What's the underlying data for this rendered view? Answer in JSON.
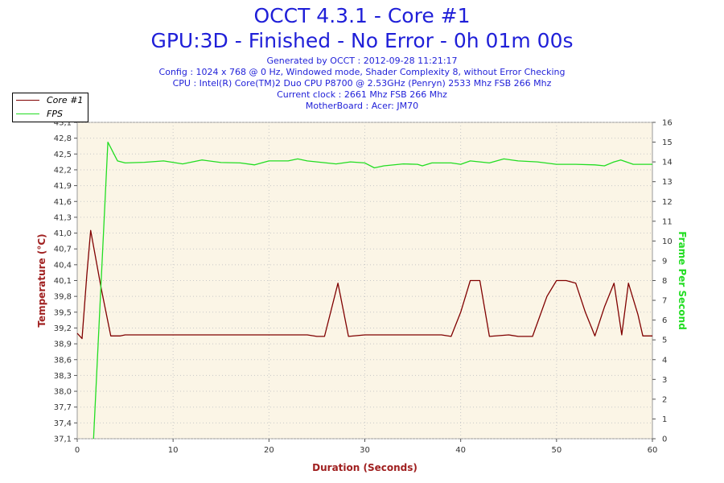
{
  "header": {
    "title": "OCCT 4.3.1 - Core #1",
    "subtitle": "GPU:3D - Finished - No Error - 0h 01m 00s",
    "info_lines": [
      "Generated by OCCT : 2012-09-28 11:21:17",
      "Config : 1024 x 768 @ 0 Hz, Windowed mode, Shader Complexity 8, without Error Checking",
      "CPU : Intel(R) Core(TM)2 Duo CPU P8700 @ 2.53GHz (Penryn) 2533 Mhz FSB 266 Mhz",
      "Current clock : 2661 Mhz FSB 266 Mhz",
      "MotherBoard : Acer: JM70"
    ]
  },
  "legend": {
    "position": "top-left",
    "items": [
      {
        "label": "Core #1",
        "color": "#800000"
      },
      {
        "label": "FPS",
        "color": "#22dd22"
      }
    ]
  },
  "colors": {
    "title": "#1f1fd8",
    "plot_background": "#fbf5e6",
    "grid": "#c8c8c8",
    "temperature_axis": "#a02020",
    "fps_axis": "#22dd22"
  },
  "chart_data": {
    "type": "line",
    "title": "OCCT 4.3.1 - Core #1",
    "subtitle": "GPU:3D - Finished - No Error - 0h 01m 00s",
    "xlabel": "Duration (Seconds)",
    "ylabel": "Temperature (°C)",
    "y2label": "Frame Per Second",
    "xlim": [
      0,
      60
    ],
    "ylim": [
      37.1,
      43.1
    ],
    "y2lim": [
      0,
      16
    ],
    "grid": true,
    "x_ticks": [
      "0",
      "10",
      "20",
      "30",
      "40",
      "50",
      "60"
    ],
    "y_ticks": [
      "37,1",
      "37,4",
      "37,7",
      "38,0",
      "38,3",
      "38,6",
      "38,9",
      "39,2",
      "39,5",
      "39,8",
      "40,1",
      "40,4",
      "40,7",
      "41,0",
      "41,3",
      "41,6",
      "41,9",
      "42,2",
      "42,5",
      "42,8",
      "43,1"
    ],
    "y2_ticks": [
      "0",
      "1",
      "2",
      "3",
      "4",
      "5",
      "6",
      "7",
      "8",
      "9",
      "10",
      "11",
      "12",
      "13",
      "14",
      "15",
      "16"
    ],
    "series": [
      {
        "name": "Core #1",
        "axis": "left",
        "color": "#800000",
        "points": [
          [
            0,
            39.1
          ],
          [
            0.5,
            39.0
          ],
          [
            1,
            40.2
          ],
          [
            1.4,
            41.05
          ],
          [
            2.5,
            39.95
          ],
          [
            3.5,
            39.05
          ],
          [
            4.5,
            39.05
          ],
          [
            5,
            39.07
          ],
          [
            10,
            39.07
          ],
          [
            15,
            39.07
          ],
          [
            20,
            39.07
          ],
          [
            24,
            39.07
          ],
          [
            25,
            39.04
          ],
          [
            25.8,
            39.04
          ],
          [
            27.2,
            40.05
          ],
          [
            28.3,
            39.04
          ],
          [
            30,
            39.07
          ],
          [
            35,
            39.07
          ],
          [
            38,
            39.07
          ],
          [
            39,
            39.04
          ],
          [
            40,
            39.5
          ],
          [
            41,
            40.1
          ],
          [
            42,
            40.1
          ],
          [
            43,
            39.04
          ],
          [
            45,
            39.07
          ],
          [
            46,
            39.04
          ],
          [
            47.5,
            39.04
          ],
          [
            49,
            39.8
          ],
          [
            50,
            40.1
          ],
          [
            51,
            40.1
          ],
          [
            52,
            40.05
          ],
          [
            53,
            39.5
          ],
          [
            54,
            39.05
          ],
          [
            55,
            39.6
          ],
          [
            56,
            40.05
          ],
          [
            56.8,
            39.07
          ],
          [
            57.5,
            40.05
          ],
          [
            58.5,
            39.45
          ],
          [
            59,
            39.05
          ],
          [
            60,
            39.05
          ]
        ]
      },
      {
        "name": "FPS",
        "axis": "right",
        "color": "#22dd22",
        "points": [
          [
            1.7,
            0
          ],
          [
            3.2,
            15.0
          ],
          [
            4.2,
            14.05
          ],
          [
            5,
            13.95
          ],
          [
            7,
            13.98
          ],
          [
            9,
            14.05
          ],
          [
            11,
            13.9
          ],
          [
            13,
            14.1
          ],
          [
            15,
            13.97
          ],
          [
            17,
            13.95
          ],
          [
            18.5,
            13.85
          ],
          [
            20,
            14.05
          ],
          [
            22,
            14.05
          ],
          [
            23,
            14.15
          ],
          [
            24,
            14.05
          ],
          [
            26,
            13.95
          ],
          [
            27,
            13.9
          ],
          [
            28.5,
            14.0
          ],
          [
            30,
            13.95
          ],
          [
            31,
            13.7
          ],
          [
            32,
            13.8
          ],
          [
            34,
            13.9
          ],
          [
            35.5,
            13.88
          ],
          [
            36,
            13.8
          ],
          [
            37,
            13.95
          ],
          [
            39,
            13.95
          ],
          [
            40,
            13.88
          ],
          [
            41,
            14.05
          ],
          [
            43,
            13.95
          ],
          [
            44.5,
            14.15
          ],
          [
            46,
            14.05
          ],
          [
            48,
            14.0
          ],
          [
            50,
            13.88
          ],
          [
            52,
            13.88
          ],
          [
            54,
            13.85
          ],
          [
            55,
            13.8
          ],
          [
            56,
            14.0
          ],
          [
            56.7,
            14.1
          ],
          [
            58,
            13.88
          ],
          [
            60,
            13.88
          ]
        ]
      }
    ]
  }
}
